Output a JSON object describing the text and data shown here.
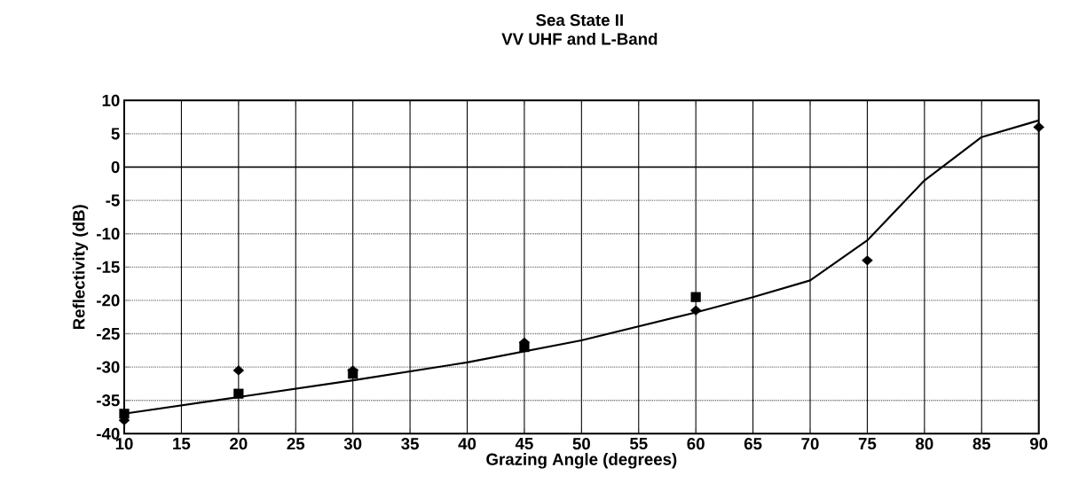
{
  "chart_data": {
    "type": "line",
    "title": "Sea State II",
    "subtitle": "VV UHF and L-Band",
    "xlabel": "Grazing Angle (degrees)",
    "ylabel": "Reflectivity (dB)",
    "xlim": [
      10,
      90
    ],
    "ylim": [
      -40,
      10
    ],
    "xticks": [
      10,
      15,
      20,
      25,
      30,
      35,
      40,
      45,
      50,
      55,
      60,
      65,
      70,
      75,
      80,
      85,
      90
    ],
    "yticks": [
      -40,
      -35,
      -30,
      -25,
      -20,
      -15,
      -10,
      -5,
      0,
      5,
      10
    ],
    "grid": true,
    "ref_lines": [
      {
        "axis": "y",
        "value": 0
      }
    ],
    "series": [
      {
        "color": "#000000",
        "marker": "none",
        "x": [
          10,
          20,
          30,
          40,
          50,
          60,
          65,
          70,
          75,
          80,
          85,
          90
        ],
        "values": [
          -37,
          -34.5,
          -32,
          -29.3,
          -26,
          -21.8,
          -19.5,
          -17,
          -11,
          -2,
          4.5,
          7
        ]
      },
      {
        "type": "scatter",
        "color": "#000000",
        "marker": "diamond",
        "x": [
          10,
          20,
          30,
          45,
          60,
          75,
          90
        ],
        "values": [
          -38,
          -30.5,
          -30.5,
          -26.3,
          -21.5,
          -14,
          6
        ]
      },
      {
        "type": "scatter",
        "color": "#000000",
        "marker": "square",
        "x": [
          10,
          20,
          30,
          45,
          60
        ],
        "values": [
          -37,
          -34,
          -31,
          -27,
          -19.5
        ]
      }
    ]
  }
}
